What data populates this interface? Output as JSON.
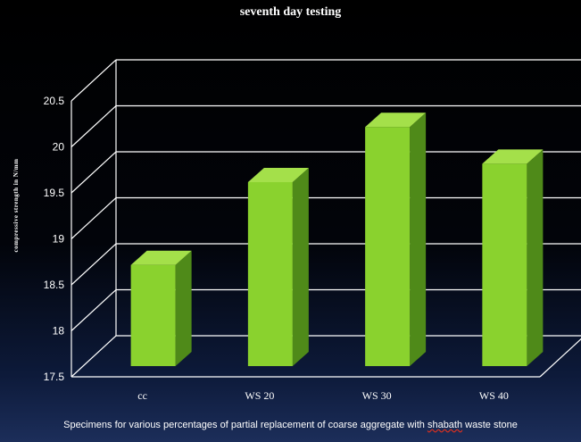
{
  "chart_data": {
    "type": "bar",
    "title": "seventh day testing",
    "ylabel": "compressive strength in N/mm",
    "xlabel": "Specimens for various percentages of partial replacement of coarse aggregate with shabath waste stone",
    "xlabel_parts": {
      "before": "Specimens for various percentages of partial replacement of coarse aggregate with ",
      "flagged_word": "shabath",
      "after": " waste stone"
    },
    "categories": [
      "cc",
      "WS 20",
      "WS 30",
      "WS 40"
    ],
    "values": [
      18.6,
      19.5,
      20.1,
      19.7
    ],
    "ylim": [
      17.5,
      20.5
    ],
    "yticks": [
      "17.5",
      "18",
      "18.5",
      "19",
      "19.5",
      "20",
      "20.5"
    ],
    "grid": true,
    "legend": "none",
    "colors": {
      "bar_front": "#8ad22e",
      "bar_side": "#4f8a19",
      "bar_top": "#a4e04a",
      "grid": "#ffffff",
      "text": "#ffffff"
    }
  }
}
